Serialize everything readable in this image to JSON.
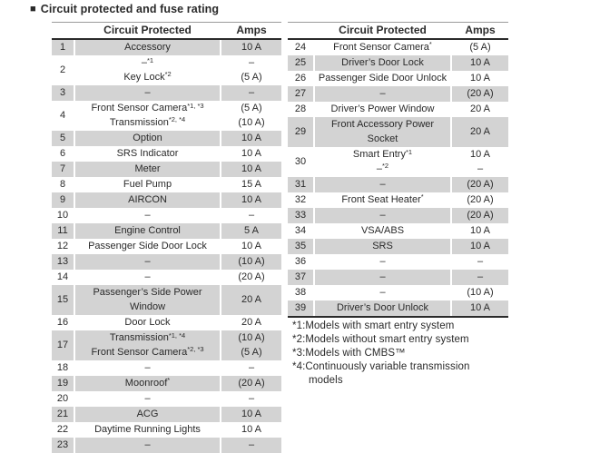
{
  "title_bullet": "■",
  "title": "Circuit protected and fuse rating",
  "colors": {
    "row_shade": "#d3d3d3",
    "rule_dark": "#2b2b2b",
    "rule_light": "#9b9b9b",
    "text": "#2a2a2a"
  },
  "tables": [
    {
      "headers": {
        "circuit": "Circuit Protected",
        "amps": "Amps"
      },
      "rows": [
        {
          "num": "1",
          "shaded": true,
          "circuit": [
            {
              "t": "Accessory",
              "s": ""
            }
          ],
          "amps": [
            "10 A"
          ]
        },
        {
          "num": "2",
          "shaded": false,
          "circuit": [
            {
              "t": "–",
              "s": "*1"
            },
            {
              "t": "Key Lock",
              "s": "*2"
            }
          ],
          "amps": [
            "–",
            "(5 A)"
          ]
        },
        {
          "num": "3",
          "shaded": true,
          "circuit": [
            {
              "t": "–",
              "s": ""
            }
          ],
          "amps": [
            "–"
          ]
        },
        {
          "num": "4",
          "shaded": false,
          "circuit": [
            {
              "t": "Front Sensor Camera",
              "s": "*1, *3"
            },
            {
              "t": "Transmission",
              "s": "*2, *4"
            }
          ],
          "amps": [
            "(5 A)",
            "(10 A)"
          ]
        },
        {
          "num": "5",
          "shaded": true,
          "circuit": [
            {
              "t": "Option",
              "s": ""
            }
          ],
          "amps": [
            "10 A"
          ]
        },
        {
          "num": "6",
          "shaded": false,
          "circuit": [
            {
              "t": "SRS Indicator",
              "s": ""
            }
          ],
          "amps": [
            "10 A"
          ]
        },
        {
          "num": "7",
          "shaded": true,
          "circuit": [
            {
              "t": "Meter",
              "s": ""
            }
          ],
          "amps": [
            "10 A"
          ]
        },
        {
          "num": "8",
          "shaded": false,
          "circuit": [
            {
              "t": "Fuel Pump",
              "s": ""
            }
          ],
          "amps": [
            "15 A"
          ]
        },
        {
          "num": "9",
          "shaded": true,
          "circuit": [
            {
              "t": "AIRCON",
              "s": ""
            }
          ],
          "amps": [
            "10 A"
          ]
        },
        {
          "num": "10",
          "shaded": false,
          "circuit": [
            {
              "t": "–",
              "s": ""
            }
          ],
          "amps": [
            "–"
          ]
        },
        {
          "num": "11",
          "shaded": true,
          "circuit": [
            {
              "t": "Engine Control",
              "s": ""
            }
          ],
          "amps": [
            "5 A"
          ]
        },
        {
          "num": "12",
          "shaded": false,
          "circuit": [
            {
              "t": "Passenger Side Door Lock",
              "s": ""
            }
          ],
          "amps": [
            "10 A"
          ]
        },
        {
          "num": "13",
          "shaded": true,
          "circuit": [
            {
              "t": "–",
              "s": ""
            }
          ],
          "amps": [
            "(10 A)"
          ]
        },
        {
          "num": "14",
          "shaded": false,
          "circuit": [
            {
              "t": "–",
              "s": ""
            }
          ],
          "amps": [
            "(20 A)"
          ]
        },
        {
          "num": "15",
          "shaded": true,
          "circuit": [
            {
              "t": "Passenger’s Side Power",
              "s": ""
            },
            {
              "t": "Window",
              "s": ""
            }
          ],
          "amps": [
            "20 A"
          ]
        },
        {
          "num": "16",
          "shaded": false,
          "circuit": [
            {
              "t": "Door Lock",
              "s": ""
            }
          ],
          "amps": [
            "20 A"
          ]
        },
        {
          "num": "17",
          "shaded": true,
          "circuit": [
            {
              "t": "Transmission",
              "s": "*1, *4"
            },
            {
              "t": "Front Sensor Camera",
              "s": "*2, *3"
            }
          ],
          "amps": [
            "(10 A)",
            "(5 A)"
          ]
        },
        {
          "num": "18",
          "shaded": false,
          "circuit": [
            {
              "t": "–",
              "s": ""
            }
          ],
          "amps": [
            "–"
          ]
        },
        {
          "num": "19",
          "shaded": true,
          "circuit": [
            {
              "t": "Moonroof",
              "s": "*"
            }
          ],
          "amps": [
            "(20 A)"
          ]
        },
        {
          "num": "20",
          "shaded": false,
          "circuit": [
            {
              "t": "–",
              "s": ""
            }
          ],
          "amps": [
            "–"
          ]
        },
        {
          "num": "21",
          "shaded": true,
          "circuit": [
            {
              "t": "ACG",
              "s": ""
            }
          ],
          "amps": [
            "10 A"
          ]
        },
        {
          "num": "22",
          "shaded": false,
          "circuit": [
            {
              "t": "Daytime Running Lights",
              "s": ""
            }
          ],
          "amps": [
            "10 A"
          ]
        },
        {
          "num": "23",
          "shaded": true,
          "circuit": [
            {
              "t": "–",
              "s": ""
            }
          ],
          "amps": [
            "–"
          ]
        }
      ]
    },
    {
      "headers": {
        "circuit": "Circuit Protected",
        "amps": "Amps"
      },
      "rows": [
        {
          "num": "24",
          "shaded": false,
          "circuit": [
            {
              "t": "Front Sensor Camera",
              "s": "*"
            }
          ],
          "amps": [
            "(5 A)"
          ]
        },
        {
          "num": "25",
          "shaded": true,
          "circuit": [
            {
              "t": "Driver’s Door Lock",
              "s": ""
            }
          ],
          "amps": [
            "10 A"
          ]
        },
        {
          "num": "26",
          "shaded": false,
          "circuit": [
            {
              "t": "Passenger Side Door Unlock",
              "s": ""
            }
          ],
          "amps": [
            "10 A"
          ]
        },
        {
          "num": "27",
          "shaded": true,
          "circuit": [
            {
              "t": "–",
              "s": ""
            }
          ],
          "amps": [
            "(20 A)"
          ]
        },
        {
          "num": "28",
          "shaded": false,
          "circuit": [
            {
              "t": "Driver’s Power Window",
              "s": ""
            }
          ],
          "amps": [
            "20 A"
          ]
        },
        {
          "num": "29",
          "shaded": true,
          "circuit": [
            {
              "t": "Front Accessory Power",
              "s": ""
            },
            {
              "t": "Socket",
              "s": ""
            }
          ],
          "amps": [
            "20 A"
          ]
        },
        {
          "num": "30",
          "shaded": false,
          "circuit": [
            {
              "t": "Smart Entry",
              "s": "*1"
            },
            {
              "t": "–",
              "s": "*2"
            }
          ],
          "amps": [
            "10 A",
            "–"
          ]
        },
        {
          "num": "31",
          "shaded": true,
          "circuit": [
            {
              "t": "–",
              "s": ""
            }
          ],
          "amps": [
            "(20 A)"
          ]
        },
        {
          "num": "32",
          "shaded": false,
          "circuit": [
            {
              "t": "Front Seat Heater",
              "s": "*"
            }
          ],
          "amps": [
            "(20 A)"
          ]
        },
        {
          "num": "33",
          "shaded": true,
          "circuit": [
            {
              "t": "–",
              "s": ""
            }
          ],
          "amps": [
            "(20 A)"
          ]
        },
        {
          "num": "34",
          "shaded": false,
          "circuit": [
            {
              "t": "VSA/ABS",
              "s": ""
            }
          ],
          "amps": [
            "10 A"
          ]
        },
        {
          "num": "35",
          "shaded": true,
          "circuit": [
            {
              "t": "SRS",
              "s": ""
            }
          ],
          "amps": [
            "10 A"
          ]
        },
        {
          "num": "36",
          "shaded": false,
          "circuit": [
            {
              "t": "–",
              "s": ""
            }
          ],
          "amps": [
            "–"
          ]
        },
        {
          "num": "37",
          "shaded": true,
          "circuit": [
            {
              "t": "–",
              "s": ""
            }
          ],
          "amps": [
            "–"
          ]
        },
        {
          "num": "38",
          "shaded": false,
          "circuit": [
            {
              "t": "–",
              "s": ""
            }
          ],
          "amps": [
            "(10 A)"
          ]
        },
        {
          "num": "39",
          "shaded": true,
          "circuit": [
            {
              "t": "Driver’s Door Unlock",
              "s": ""
            }
          ],
          "amps": [
            "10 A"
          ]
        }
      ]
    }
  ],
  "footnotes": [
    {
      "text": "*1:Models with smart entry system",
      "indent": false
    },
    {
      "text": "*2:Models without smart entry system",
      "indent": false
    },
    {
      "text": "*3:Models with CMBS™",
      "indent": false
    },
    {
      "text": "*4:Continuously variable transmission",
      "indent": false
    },
    {
      "text": "models",
      "indent": true
    }
  ]
}
